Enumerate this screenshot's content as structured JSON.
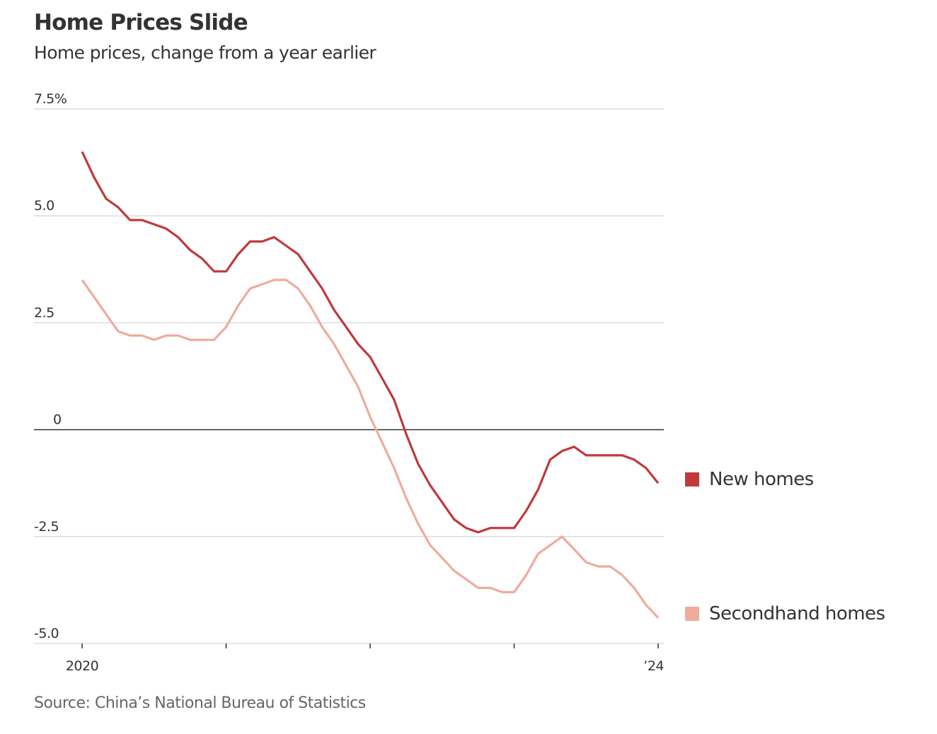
{
  "header": {
    "title": "Home Prices Slide",
    "subtitle": "Home prices, change from a year earlier"
  },
  "footer": {
    "source": "Source: China’s National Bureau of Statistics"
  },
  "colors": {
    "new_homes": "#c0393b",
    "secondhand_homes": "#eeac9c",
    "gridline": "#dddddd",
    "zero_line": "#333333"
  },
  "chart_data": {
    "type": "line",
    "title": "Home Prices Slide",
    "subtitle": "Home prices, change from a year earlier",
    "xlabel": "",
    "ylabel": "",
    "x_range": [
      "2020-01",
      "2024-01"
    ],
    "x_ticks": [
      "2020",
      "",
      "",
      "",
      "’24"
    ],
    "ylim": [
      -5.0,
      7.5
    ],
    "y_ticks": [
      7.5,
      5.0,
      2.5,
      0,
      -2.5,
      -5.0
    ],
    "y_tick_labels": [
      "7.5%",
      "5.0",
      "2.5",
      "0",
      "-2.5",
      "-5.0"
    ],
    "grid": true,
    "legend_position": "right",
    "frequency": "monthly",
    "series": [
      {
        "name": "New homes",
        "color": "#c0393b",
        "values": [
          6.5,
          5.9,
          5.4,
          5.2,
          4.9,
          4.9,
          4.8,
          4.7,
          4.5,
          4.2,
          4.0,
          3.7,
          3.7,
          4.1,
          4.4,
          4.4,
          4.5,
          4.3,
          4.1,
          3.7,
          3.3,
          2.8,
          2.4,
          2.0,
          1.7,
          1.2,
          0.7,
          -0.1,
          -0.8,
          -1.3,
          -1.7,
          -2.1,
          -2.3,
          -2.4,
          -2.3,
          -2.3,
          -2.3,
          -1.9,
          -1.4,
          -0.7,
          -0.5,
          -0.4,
          -0.6,
          -0.6,
          -0.6,
          -0.6,
          -0.7,
          -0.9,
          -1.25
        ]
      },
      {
        "name": "Secondhand homes",
        "color": "#eeac9c",
        "values": [
          3.5,
          3.1,
          2.7,
          2.3,
          2.2,
          2.2,
          2.1,
          2.2,
          2.2,
          2.1,
          2.1,
          2.1,
          2.4,
          2.9,
          3.3,
          3.4,
          3.5,
          3.5,
          3.3,
          2.9,
          2.4,
          2.0,
          1.5,
          1.0,
          0.3,
          -0.3,
          -0.9,
          -1.6,
          -2.2,
          -2.7,
          -3.0,
          -3.3,
          -3.5,
          -3.7,
          -3.7,
          -3.8,
          -3.8,
          -3.4,
          -2.9,
          -2.7,
          -2.5,
          -2.8,
          -3.1,
          -3.2,
          -3.2,
          -3.4,
          -3.7,
          -4.1,
          -4.4
        ]
      }
    ]
  }
}
